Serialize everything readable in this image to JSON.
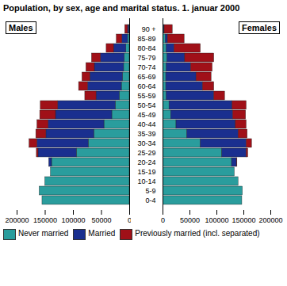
{
  "chart_data": {
    "type": "bar",
    "title": "Population, by sex, age and marital status. 1. januar 2000",
    "orientation": "horizontal",
    "stacked": true,
    "categories": [
      "0-4",
      "5-9",
      "10-14",
      "15-19",
      "20-24",
      "25-29",
      "30-34",
      "35-39",
      "40-44",
      "45-49",
      "50-54",
      "55-59",
      "60-64",
      "65-69",
      "70-74",
      "75-79",
      "80-84",
      "85-89",
      "90 +"
    ],
    "xlim": [
      0,
      200000
    ],
    "xticks": [
      0,
      50000,
      100000,
      150000,
      200000
    ],
    "panels": [
      {
        "label": "Males",
        "series": [
          {
            "name": "Never married",
            "color": "#2a9d9d",
            "values": [
              155000,
              160000,
              150000,
              140000,
              138000,
              94000,
              73000,
              63000,
              45000,
              31000,
              25000,
              18000,
              14000,
              12000,
              10000,
              9000,
              6000,
              3000,
              1000
            ]
          },
          {
            "name": "Married",
            "color": "#1a2f8f",
            "values": [
              0,
              0,
              0,
              0,
              5000,
              68000,
              91000,
              85000,
              99000,
              100000,
              102000,
              41000,
              60000,
              58000,
              52000,
              42000,
              22000,
              10000,
              2000
            ]
          },
          {
            "name": "Previously married (incl. separated)",
            "color": "#a01018",
            "values": [
              0,
              0,
              0,
              0,
              0,
              3000,
              14000,
              18000,
              20000,
              28000,
              31000,
              20000,
              16000,
              14000,
              15000,
              16000,
              13000,
              10000,
              5000
            ]
          }
        ]
      },
      {
        "label": "Females",
        "series": [
          {
            "name": "Never married",
            "color": "#2a9d9d",
            "values": [
              147000,
              148000,
              140000,
              133000,
              128000,
              110000,
              70000,
              45000,
              25000,
              15000,
              12000,
              7000,
              6000,
              6000,
              7000,
              8000,
              7000,
              5000,
              2000
            ]
          },
          {
            "name": "Married",
            "color": "#1a2f8f",
            "values": [
              0,
              0,
              0,
              0,
              9000,
              45000,
              85000,
              95000,
              110000,
              115000,
              117000,
              88000,
              68000,
              56000,
              45000,
              33000,
              14000,
              4000,
              1000
            ]
          },
          {
            "name": "Previously married (incl. separated)",
            "color": "#a01018",
            "values": [
              0,
              0,
              0,
              0,
              1000,
              3000,
              10000,
              17000,
              20000,
              24000,
              26000,
              20000,
              21000,
              28000,
              40000,
              54000,
              49000,
              31000,
              15000
            ]
          }
        ]
      }
    ]
  }
}
